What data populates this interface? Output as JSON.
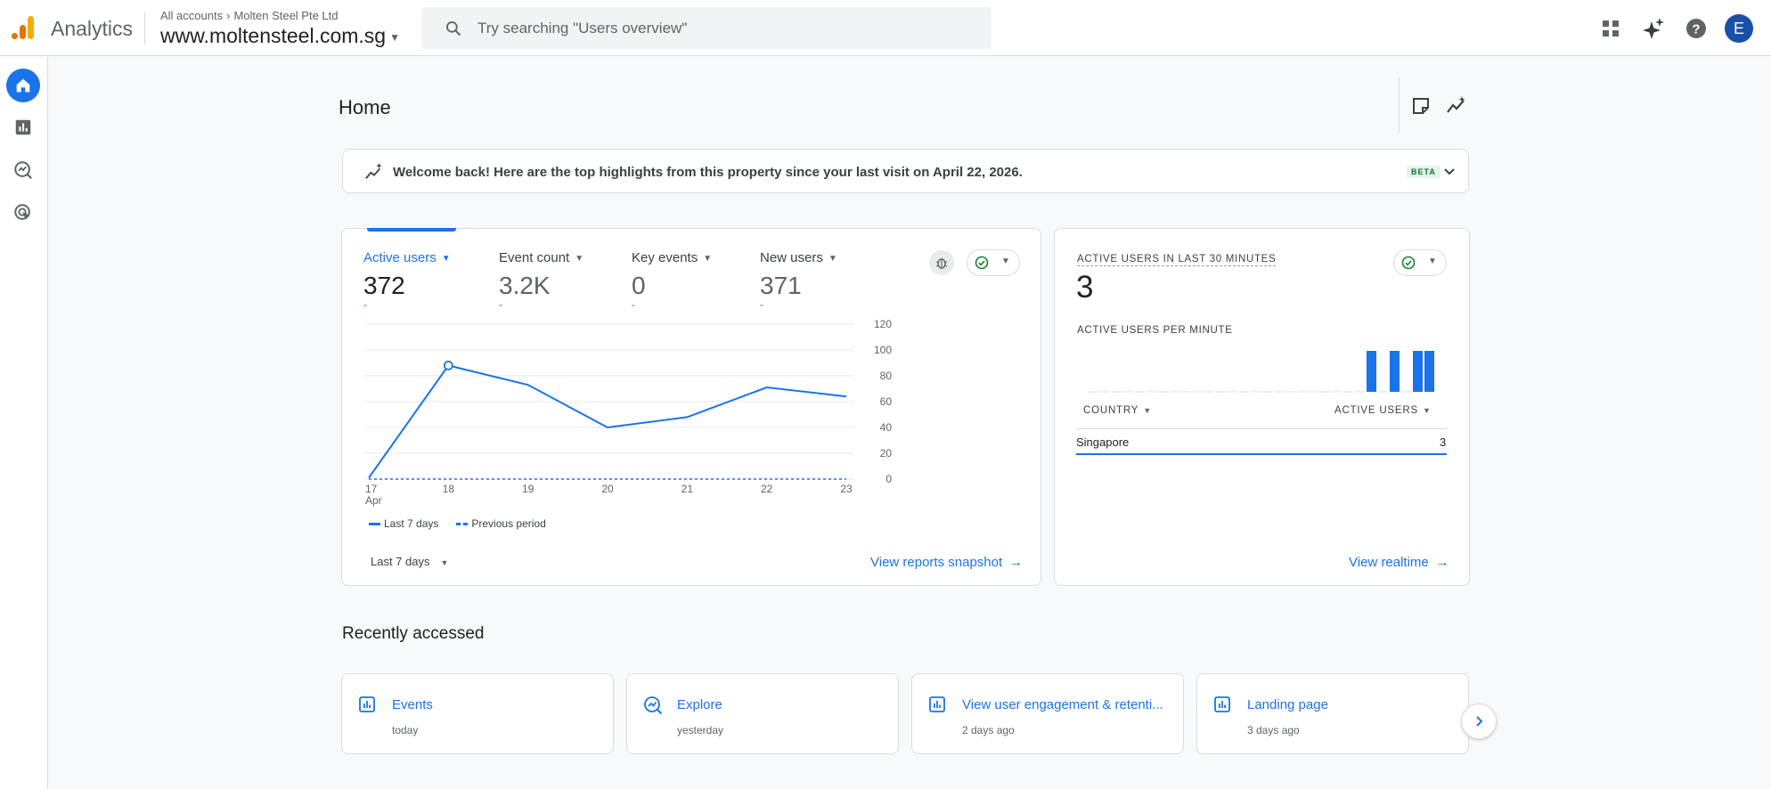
{
  "app": {
    "name": "Analytics"
  },
  "header": {
    "breadcrumb": {
      "root": "All accounts",
      "account": "Molten Steel Pte Ltd"
    },
    "property": "www.moltensteel.com.sg",
    "search_placeholder": "Try searching \"Users overview\"",
    "avatar_letter": "E"
  },
  "page": {
    "title": "Home"
  },
  "banner": {
    "text": "Welcome back! Here are the top highlights from this property since your last visit on April 22, 2026.",
    "badge": "BETA"
  },
  "metrics": [
    {
      "label": "Active users",
      "value": "372",
      "change": "-",
      "selected": true
    },
    {
      "label": "Event count",
      "value": "3.2K",
      "change": "-",
      "selected": false
    },
    {
      "label": "Key events",
      "value": "0",
      "change": "-",
      "selected": false
    },
    {
      "label": "New users",
      "value": "371",
      "change": "-",
      "selected": false
    }
  ],
  "chart_data": {
    "type": "line",
    "categories": [
      "17 Apr",
      "18",
      "19",
      "20",
      "21",
      "22",
      "23"
    ],
    "x_tick_labels": [
      "17",
      "18",
      "19",
      "20",
      "21",
      "22",
      "23"
    ],
    "x_tick_sub": "Apr",
    "y_ticks": [
      "0",
      "20",
      "40",
      "60",
      "80",
      "100",
      "120"
    ],
    "ylim": [
      0,
      120
    ],
    "series": [
      {
        "name": "Last 7 days",
        "values": [
          1,
          88,
          73,
          40,
          48,
          71,
          64
        ],
        "style": "solid"
      },
      {
        "name": "Previous period",
        "values": [
          0,
          0,
          0,
          0,
          0,
          0,
          0
        ],
        "style": "dashed"
      }
    ],
    "highlight_index": 1,
    "color": "#1a73e8",
    "grid": true
  },
  "main_card": {
    "date_range": "Last 7 days",
    "link": "View reports snapshot"
  },
  "realtime": {
    "label": "ACTIVE USERS IN LAST 30 MINUTES",
    "value": "3",
    "sub_label": "ACTIVE USERS PER MINUTE",
    "per_minute": [
      0,
      0,
      0,
      0,
      0,
      0,
      0,
      0,
      0,
      0,
      0,
      0,
      0,
      0,
      0,
      0,
      0,
      0,
      0,
      0,
      0,
      0,
      0,
      0,
      1,
      0,
      1,
      0,
      1,
      1
    ],
    "columns": {
      "country": "COUNTRY",
      "active_users": "ACTIVE USERS"
    },
    "rows": [
      {
        "country": "Singapore",
        "active_users": "3"
      }
    ],
    "link": "View realtime"
  },
  "recent": {
    "title": "Recently accessed",
    "items": [
      {
        "title": "Events",
        "time": "today",
        "icon": "bar-chart-icon"
      },
      {
        "title": "Explore",
        "time": "yesterday",
        "icon": "explore-icon"
      },
      {
        "title": "View user engagement & retenti...",
        "time": "2 days ago",
        "icon": "bar-chart-icon"
      },
      {
        "title": "Landing page",
        "time": "3 days ago",
        "icon": "bar-chart-icon"
      }
    ]
  }
}
